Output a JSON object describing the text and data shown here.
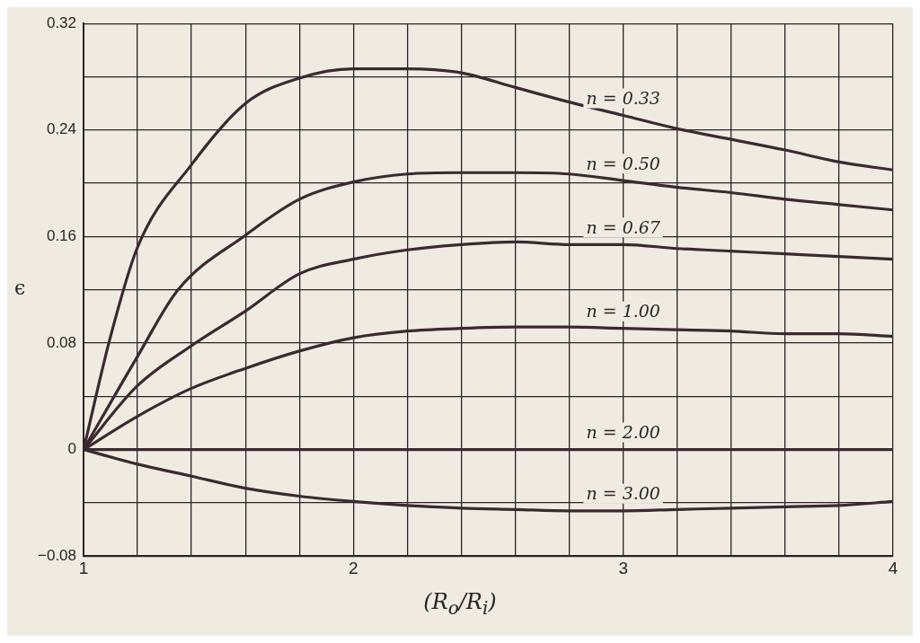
{
  "chart_data": {
    "type": "line",
    "xlabel": "(R$_{o}$/R$_{i}$)",
    "ylabel": "ϵ",
    "xlim": [
      1,
      4
    ],
    "ylim": [
      -0.08,
      0.32
    ],
    "xticks": [
      1,
      {
        "value": 1.2,
        "label": null
      },
      {
        "value": 1.4,
        "label": null
      },
      {
        "value": 1.6,
        "label": null
      },
      {
        "value": 1.8,
        "label": null
      },
      2,
      {
        "value": 2.2,
        "label": null
      },
      {
        "value": 2.4,
        "label": null
      },
      {
        "value": 2.6,
        "label": null
      },
      {
        "value": 2.8,
        "label": null
      },
      3,
      {
        "value": 3.2,
        "label": null
      },
      {
        "value": 3.4,
        "label": null
      },
      {
        "value": 3.6,
        "label": null
      },
      {
        "value": 3.8,
        "label": null
      },
      4
    ],
    "yticks": [
      {
        "value": -0.08,
        "label": "−0.08"
      },
      {
        "value": -0.04,
        "label": null
      },
      0,
      {
        "value": 0.04,
        "label": null
      },
      0.08,
      {
        "value": 0.12,
        "label": null
      },
      0.16,
      {
        "value": 0.2,
        "label": null
      },
      0.24,
      {
        "value": 0.28,
        "label": null
      },
      0.32
    ],
    "grid": true,
    "marker": "none",
    "line_style": "solid",
    "series": [
      {
        "name": "n = 0.33",
        "color": "#3a2a30",
        "x": [
          1,
          1.1,
          1.2,
          1.4,
          1.6,
          1.8,
          2,
          2.2,
          2.4,
          2.6,
          2.8,
          3,
          3.2,
          3.4,
          3.6,
          3.8,
          4
        ],
        "values": [
          0,
          0.085,
          0.152,
          0.214,
          0.26,
          0.279,
          0.286,
          0.286,
          0.283,
          0.272,
          0.261,
          0.251,
          0.241,
          0.233,
          0.225,
          0.216,
          0.21
        ]
      },
      {
        "name": "n = 0.50",
        "color": "#3a2a30",
        "x": [
          1,
          1.2,
          1.35,
          1.6,
          1.8,
          2,
          2.2,
          2.4,
          2.6,
          2.8,
          3,
          3.2,
          3.4,
          3.6,
          3.8,
          4
        ],
        "values": [
          0,
          0.07,
          0.12,
          0.161,
          0.188,
          0.201,
          0.207,
          0.208,
          0.208,
          0.207,
          0.202,
          0.197,
          0.193,
          0.188,
          0.184,
          0.18
        ]
      },
      {
        "name": "n = 0.67",
        "color": "#3a2a30",
        "x": [
          1,
          1.2,
          1.4,
          1.6,
          1.8,
          2,
          2.2,
          2.4,
          2.6,
          2.8,
          3,
          3.2,
          3.4,
          3.6,
          3.8,
          4
        ],
        "values": [
          0,
          0.048,
          0.078,
          0.104,
          0.132,
          0.143,
          0.15,
          0.154,
          0.156,
          0.154,
          0.154,
          0.151,
          0.149,
          0.147,
          0.145,
          0.143
        ]
      },
      {
        "name": "n = 1.00",
        "color": "#3a2a30",
        "x": [
          1,
          1.2,
          1.4,
          1.6,
          1.8,
          2,
          2.2,
          2.4,
          2.6,
          2.8,
          3,
          3.2,
          3.4,
          3.6,
          3.8,
          4
        ],
        "values": [
          0,
          0.025,
          0.046,
          0.061,
          0.074,
          0.084,
          0.089,
          0.091,
          0.092,
          0.092,
          0.091,
          0.09,
          0.089,
          0.087,
          0.087,
          0.085
        ]
      },
      {
        "name": "n = 2.00",
        "color": "#3a2a30",
        "x": [
          1,
          4
        ],
        "values": [
          0,
          0
        ]
      },
      {
        "name": "n = 3.00",
        "color": "#3a2a30",
        "x": [
          1,
          1.2,
          1.4,
          1.6,
          1.8,
          2,
          2.2,
          2.4,
          2.6,
          2.8,
          3,
          3.2,
          3.4,
          3.6,
          3.8,
          4
        ],
        "values": [
          0,
          -0.011,
          -0.02,
          -0.029,
          -0.035,
          -0.039,
          -0.042,
          -0.044,
          -0.045,
          -0.046,
          -0.046,
          -0.045,
          -0.044,
          -0.043,
          -0.042,
          -0.039
        ]
      }
    ]
  }
}
